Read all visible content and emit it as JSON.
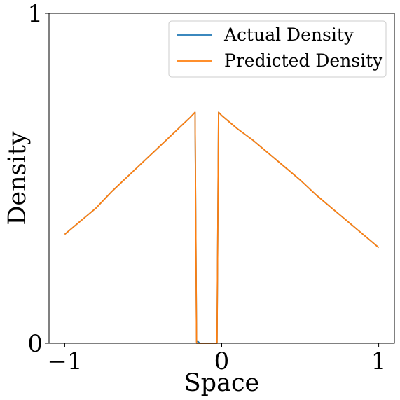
{
  "chart_data": {
    "type": "line",
    "xlabel": "Space",
    "ylabel": "Density",
    "xlim": [
      -1.1,
      1.1
    ],
    "ylim": [
      0,
      1
    ],
    "xticks": [
      -1,
      0,
      1
    ],
    "xtick_labels": [
      "−1",
      "0",
      "1"
    ],
    "yticks": [
      0,
      1
    ],
    "ytick_labels": [
      "0",
      "1"
    ],
    "grid": false,
    "legend_position": "upper right",
    "series": [
      {
        "name": "Actual Density",
        "color": "#1f77b4",
        "x": [
          -1.0,
          -0.9,
          -0.8,
          -0.7,
          -0.6,
          -0.5,
          -0.4,
          -0.3,
          -0.2,
          -0.17,
          -0.16,
          -0.15,
          -0.14,
          -0.13,
          -0.12,
          -0.1,
          -0.08,
          -0.05,
          -0.04,
          -0.03,
          -0.02,
          0.0,
          0.1,
          0.2,
          0.3,
          0.4,
          0.5,
          0.6,
          0.7,
          0.8,
          0.9,
          1.0
        ],
        "y": [
          0.33,
          0.37,
          0.41,
          0.46,
          0.505,
          0.55,
          0.595,
          0.64,
          0.685,
          0.7,
          0.005,
          0.005,
          0.0,
          0.0,
          0.0,
          0.0,
          0.0,
          0.0,
          0.0,
          0.0,
          0.7,
          0.69,
          0.65,
          0.615,
          0.575,
          0.535,
          0.495,
          0.45,
          0.41,
          0.37,
          0.33,
          0.29
        ]
      },
      {
        "name": "Predicted Density",
        "color": "#ff7f0e",
        "x": [
          -1.0,
          -0.9,
          -0.8,
          -0.7,
          -0.6,
          -0.5,
          -0.4,
          -0.3,
          -0.2,
          -0.17,
          -0.16,
          -0.15,
          -0.14,
          -0.13,
          -0.12,
          -0.1,
          -0.08,
          -0.05,
          -0.04,
          -0.03,
          -0.02,
          0.0,
          0.1,
          0.2,
          0.3,
          0.4,
          0.5,
          0.6,
          0.7,
          0.8,
          0.9,
          1.0
        ],
        "y": [
          0.33,
          0.37,
          0.41,
          0.46,
          0.505,
          0.55,
          0.595,
          0.64,
          0.685,
          0.7,
          0.0,
          0.0,
          0.0,
          0.0,
          0.0,
          0.0,
          0.0,
          0.0,
          0.0,
          0.0,
          0.7,
          0.69,
          0.65,
          0.615,
          0.575,
          0.535,
          0.495,
          0.45,
          0.41,
          0.37,
          0.33,
          0.29
        ]
      }
    ]
  }
}
